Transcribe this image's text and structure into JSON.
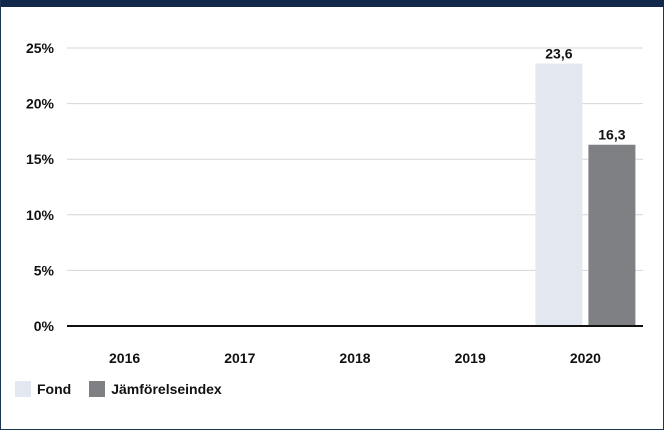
{
  "chart_data": {
    "type": "bar",
    "categories": [
      "2016",
      "2017",
      "2018",
      "2019",
      "2020"
    ],
    "series": [
      {
        "name": "Fond",
        "color": "#e3e8f0",
        "values": [
          null,
          null,
          null,
          null,
          23.6
        ],
        "labels": [
          "",
          "",
          "",
          "",
          "23,6"
        ]
      },
      {
        "name": "Jämförelseindex",
        "color": "#7f8083",
        "values": [
          null,
          null,
          null,
          null,
          16.3
        ],
        "labels": [
          "",
          "",
          "",
          "",
          "16,3"
        ]
      }
    ],
    "yticks": [
      0,
      5,
      10,
      15,
      20,
      25
    ],
    "ytick_labels": [
      "0%",
      "5%",
      "10%",
      "15%",
      "20%",
      "25%"
    ],
    "ylim": [
      0,
      25
    ],
    "grid": true,
    "legend": "bottom-left",
    "title": "",
    "xlabel": "",
    "ylabel": ""
  }
}
